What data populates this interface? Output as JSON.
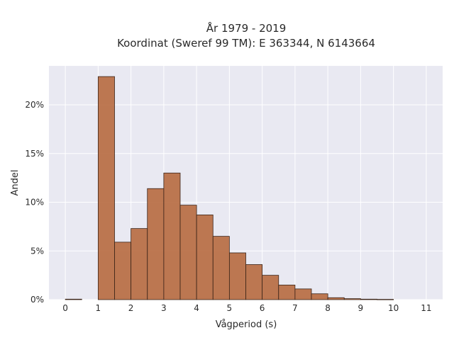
{
  "chart_data": {
    "type": "bar",
    "title_line1": "År 1979 - 2019",
    "title_line2": "Koordinat (Sweref 99 TM): E 363344, N 6143664",
    "xlabel": "Vågperiod (s)",
    "ylabel": "Andel",
    "xlim": [
      -0.5,
      11.5
    ],
    "ylim": [
      0,
      0.24
    ],
    "grid": true,
    "x_ticks": [
      {
        "value": 0,
        "label": "0"
      },
      {
        "value": 1,
        "label": "1"
      },
      {
        "value": 2,
        "label": "2"
      },
      {
        "value": 3,
        "label": "3"
      },
      {
        "value": 4,
        "label": "4"
      },
      {
        "value": 5,
        "label": "5"
      },
      {
        "value": 6,
        "label": "6"
      },
      {
        "value": 7,
        "label": "7"
      },
      {
        "value": 8,
        "label": "8"
      },
      {
        "value": 9,
        "label": "9"
      },
      {
        "value": 10,
        "label": "10"
      },
      {
        "value": 11,
        "label": "11"
      }
    ],
    "y_ticks": [
      {
        "value": 0,
        "label": "0%"
      },
      {
        "value": 0.05,
        "label": "5%"
      },
      {
        "value": 0.1,
        "label": "10%"
      },
      {
        "value": 0.15,
        "label": "15%"
      },
      {
        "value": 0.2,
        "label": "20%"
      }
    ],
    "bins": [
      {
        "x0": 0.0,
        "x1": 0.5,
        "value": 0.0005
      },
      {
        "x0": 1.0,
        "x1": 1.5,
        "value": 0.229
      },
      {
        "x0": 1.5,
        "x1": 2.0,
        "value": 0.059
      },
      {
        "x0": 2.0,
        "x1": 2.5,
        "value": 0.073
      },
      {
        "x0": 2.5,
        "x1": 3.0,
        "value": 0.114
      },
      {
        "x0": 3.0,
        "x1": 3.5,
        "value": 0.13
      },
      {
        "x0": 3.5,
        "x1": 4.0,
        "value": 0.097
      },
      {
        "x0": 4.0,
        "x1": 4.5,
        "value": 0.087
      },
      {
        "x0": 4.5,
        "x1": 5.0,
        "value": 0.065
      },
      {
        "x0": 5.0,
        "x1": 5.5,
        "value": 0.048
      },
      {
        "x0": 5.5,
        "x1": 6.0,
        "value": 0.036
      },
      {
        "x0": 6.0,
        "x1": 6.5,
        "value": 0.025
      },
      {
        "x0": 6.5,
        "x1": 7.0,
        "value": 0.015
      },
      {
        "x0": 7.0,
        "x1": 7.5,
        "value": 0.011
      },
      {
        "x0": 7.5,
        "x1": 8.0,
        "value": 0.006
      },
      {
        "x0": 8.0,
        "x1": 8.5,
        "value": 0.002
      },
      {
        "x0": 8.5,
        "x1": 9.0,
        "value": 0.001
      },
      {
        "x0": 9.0,
        "x1": 9.5,
        "value": 0.0005
      },
      {
        "x0": 9.5,
        "x1": 10.0,
        "value": 0.0003
      }
    ],
    "colors": {
      "bar": "#b5663a",
      "bar_edge": "#3a2418",
      "plot_bg": "#e9e9f2",
      "grid": "#ffffff"
    }
  }
}
